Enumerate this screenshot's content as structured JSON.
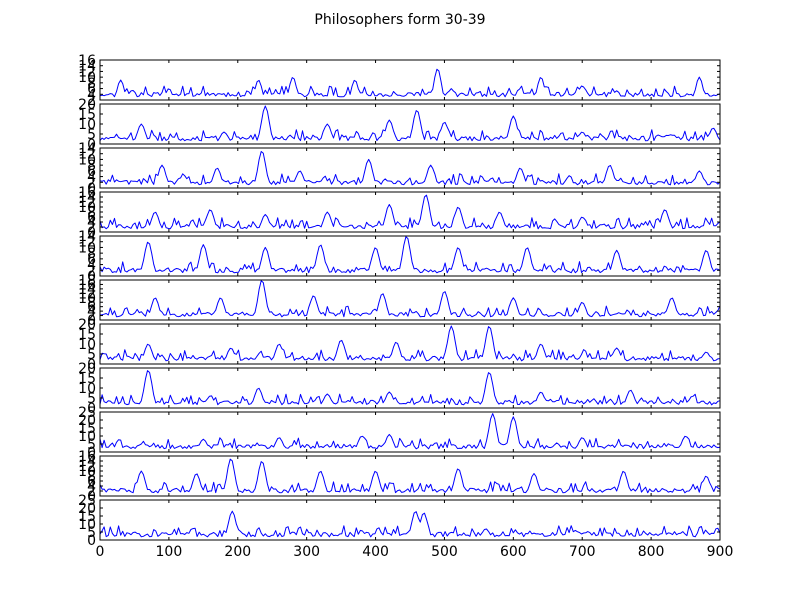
{
  "chart_data": {
    "type": "line",
    "title": "Philosophers form 30-39",
    "line_color": "#0000ff",
    "xlim": [
      0,
      900
    ],
    "x_ticks": [
      0,
      100,
      200,
      300,
      400,
      500,
      600,
      700,
      800,
      900
    ],
    "panels": [
      {
        "name": "",
        "ylim": [
          2,
          16
        ],
        "y_ticks": [
          2,
          4,
          6,
          8,
          10,
          12,
          14,
          16
        ],
        "peaks": [
          [
            0,
            3
          ],
          [
            30,
            9
          ],
          [
            100,
            6
          ],
          [
            230,
            9
          ],
          [
            280,
            10
          ],
          [
            370,
            9
          ],
          [
            490,
            13
          ],
          [
            510,
            6
          ],
          [
            640,
            10
          ],
          [
            700,
            7
          ],
          [
            870,
            10
          ]
        ]
      },
      {
        "name": "",
        "ylim": [
          0,
          20
        ],
        "y_ticks": [
          0,
          5,
          10,
          15,
          20
        ],
        "peaks": [
          [
            0,
            1
          ],
          [
            60,
            10
          ],
          [
            180,
            6
          ],
          [
            240,
            19
          ],
          [
            330,
            10
          ],
          [
            420,
            12
          ],
          [
            460,
            17
          ],
          [
            500,
            11
          ],
          [
            600,
            14
          ],
          [
            700,
            6
          ],
          [
            890,
            8
          ]
        ]
      },
      {
        "name": "",
        "ylim": [
          0,
          14
        ],
        "y_ticks": [
          0,
          2,
          4,
          6,
          8,
          10,
          12,
          14
        ],
        "peaks": [
          [
            0,
            1
          ],
          [
            90,
            8
          ],
          [
            170,
            7
          ],
          [
            235,
            13
          ],
          [
            290,
            6
          ],
          [
            390,
            10
          ],
          [
            480,
            8
          ],
          [
            610,
            7
          ],
          [
            740,
            8
          ],
          [
            870,
            6
          ]
        ]
      },
      {
        "name": "",
        "ylim": [
          0,
          16
        ],
        "y_ticks": [
          0,
          2,
          4,
          6,
          8,
          10,
          12,
          14,
          16
        ],
        "peaks": [
          [
            0,
            2
          ],
          [
            80,
            8
          ],
          [
            160,
            9
          ],
          [
            240,
            7
          ],
          [
            330,
            8
          ],
          [
            420,
            11
          ],
          [
            473,
            15
          ],
          [
            520,
            10
          ],
          [
            580,
            8
          ],
          [
            700,
            6
          ],
          [
            820,
            9
          ],
          [
            900,
            4
          ]
        ]
      },
      {
        "name": "",
        "ylim": [
          0,
          14
        ],
        "y_ticks": [
          0,
          2,
          4,
          6,
          8,
          10,
          12,
          14
        ],
        "peaks": [
          [
            0,
            1
          ],
          [
            70,
            12
          ],
          [
            150,
            11
          ],
          [
            240,
            10
          ],
          [
            320,
            11
          ],
          [
            400,
            10
          ],
          [
            445,
            14
          ],
          [
            520,
            10
          ],
          [
            620,
            10
          ],
          [
            750,
            9
          ],
          [
            880,
            9
          ]
        ]
      },
      {
        "name": "",
        "ylim": [
          0,
          18
        ],
        "y_ticks": [
          0,
          2,
          4,
          6,
          8,
          10,
          12,
          14,
          16,
          18
        ],
        "peaks": [
          [
            0,
            1
          ],
          [
            80,
            10
          ],
          [
            175,
            10
          ],
          [
            235,
            18
          ],
          [
            310,
            11
          ],
          [
            410,
            12
          ],
          [
            500,
            13
          ],
          [
            600,
            10
          ],
          [
            700,
            8
          ],
          [
            830,
            10
          ],
          [
            900,
            5
          ]
        ]
      },
      {
        "name": "",
        "ylim": [
          0,
          20
        ],
        "y_ticks": [
          0,
          5,
          10,
          15,
          20
        ],
        "peaks": [
          [
            0,
            1
          ],
          [
            70,
            10
          ],
          [
            190,
            8
          ],
          [
            260,
            10
          ],
          [
            350,
            12
          ],
          [
            430,
            11
          ],
          [
            510,
            19
          ],
          [
            565,
            19
          ],
          [
            640,
            10
          ],
          [
            750,
            8
          ],
          [
            880,
            6
          ]
        ]
      },
      {
        "name": "",
        "ylim": [
          0,
          20
        ],
        "y_ticks": [
          0,
          5,
          10,
          15,
          20
        ],
        "peaks": [
          [
            0,
            1
          ],
          [
            70,
            19
          ],
          [
            160,
            6
          ],
          [
            230,
            10
          ],
          [
            330,
            7
          ],
          [
            420,
            8
          ],
          [
            565,
            18
          ],
          [
            640,
            8
          ],
          [
            770,
            9
          ],
          [
            860,
            6
          ]
        ]
      },
      {
        "name": "",
        "ylim": [
          0,
          25
        ],
        "y_ticks": [
          0,
          5,
          10,
          15,
          20,
          25
        ],
        "peaks": [
          [
            0,
            2
          ],
          [
            60,
            5
          ],
          [
            150,
            8
          ],
          [
            260,
            9
          ],
          [
            380,
            10
          ],
          [
            420,
            11
          ],
          [
            570,
            24
          ],
          [
            600,
            22
          ],
          [
            700,
            9
          ],
          [
            850,
            10
          ]
        ]
      },
      {
        "name": "",
        "ylim": [
          0,
          16
        ],
        "y_ticks": [
          0,
          2,
          4,
          6,
          8,
          10,
          12,
          14,
          16
        ],
        "peaks": [
          [
            0,
            1
          ],
          [
            60,
            10
          ],
          [
            140,
            9
          ],
          [
            190,
            15
          ],
          [
            235,
            14
          ],
          [
            320,
            10
          ],
          [
            400,
            10
          ],
          [
            520,
            11
          ],
          [
            630,
            9
          ],
          [
            760,
            10
          ],
          [
            880,
            8
          ]
        ]
      },
      {
        "name": "",
        "ylim": [
          0,
          25
        ],
        "y_ticks": [
          0,
          5,
          10,
          15,
          20,
          25
        ],
        "peaks": [
          [
            0,
            1
          ],
          [
            50,
            5
          ],
          [
            120,
            4
          ],
          [
            192,
            18
          ],
          [
            280,
            5
          ],
          [
            350,
            4
          ],
          [
            458,
            18
          ],
          [
            470,
            17
          ],
          [
            560,
            7
          ],
          [
            690,
            6
          ],
          [
            880,
            5
          ]
        ]
      }
    ]
  }
}
